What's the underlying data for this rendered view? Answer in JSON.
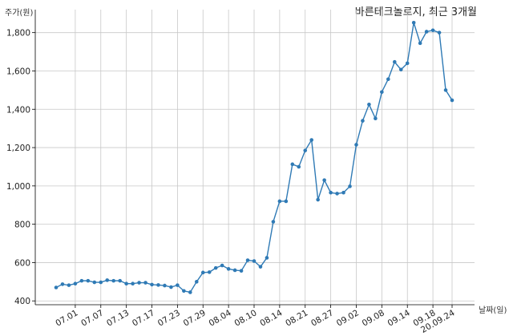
{
  "chart_data": {
    "type": "line",
    "title": "바른테크놀로지, 최근 3개월",
    "ylabel": "주가(원)",
    "xlabel": "날짜(일)",
    "ylim": [
      380,
      1920
    ],
    "y_ticks": [
      400,
      600,
      800,
      1000,
      1200,
      1400,
      1600,
      1800
    ],
    "y_tick_labels": [
      "400",
      "600",
      "800",
      "1,000",
      "1,200",
      "1,400",
      "1,600",
      "1,800"
    ],
    "x_tick_labels": [
      "07.01",
      "07.07",
      "07.13",
      "07.17",
      "07.23",
      "07.29",
      "08.04",
      "08.10",
      "08.14",
      "08.21",
      "08.27",
      "09.02",
      "09.08",
      "09.14",
      "09.18",
      "20.09.24"
    ],
    "x_tick_positions": [
      3,
      7,
      11,
      15,
      19,
      23,
      27,
      31,
      35,
      39,
      43,
      47,
      51,
      55,
      59,
      62
    ],
    "grid": true,
    "series": [
      {
        "color": "#2f7ab5",
        "values": [
          470,
          487,
          482,
          490,
          505,
          505,
          497,
          497,
          508,
          505,
          505,
          490,
          490,
          495,
          495,
          485,
          483,
          480,
          472,
          482,
          452,
          445,
          500,
          548,
          550,
          572,
          585,
          567,
          560,
          557,
          612,
          608,
          578,
          625,
          813,
          920,
          920,
          1113,
          1100,
          1185,
          1240,
          928,
          1030,
          965,
          960,
          965,
          998,
          1215,
          1340,
          1425,
          1352,
          1490,
          1557,
          1647,
          1607,
          1640,
          1852,
          1745,
          1805,
          1812,
          1800,
          1500,
          1447
        ]
      }
    ]
  }
}
